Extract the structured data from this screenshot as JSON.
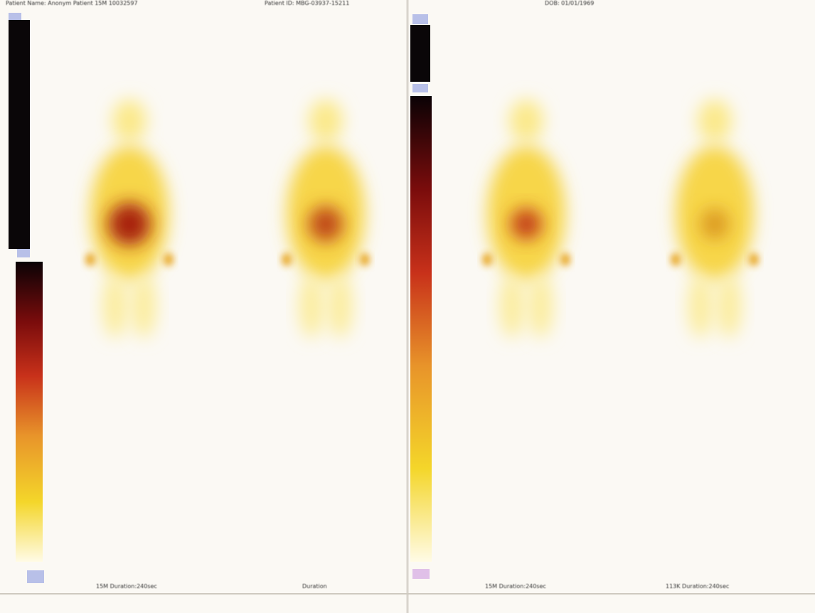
{
  "header": {
    "patient_name": "Patient Name: Anonym Patient 15M 10032597",
    "patient_id": "Patient ID: MBG-03937-15211",
    "dob": "DOB: 01/01/1969"
  },
  "footer": {
    "view_1": "15M Duration:240sec",
    "view_2": "Duration",
    "view_3": "15M Duration:240sec",
    "view_4": "113K Duration:240sec"
  }
}
